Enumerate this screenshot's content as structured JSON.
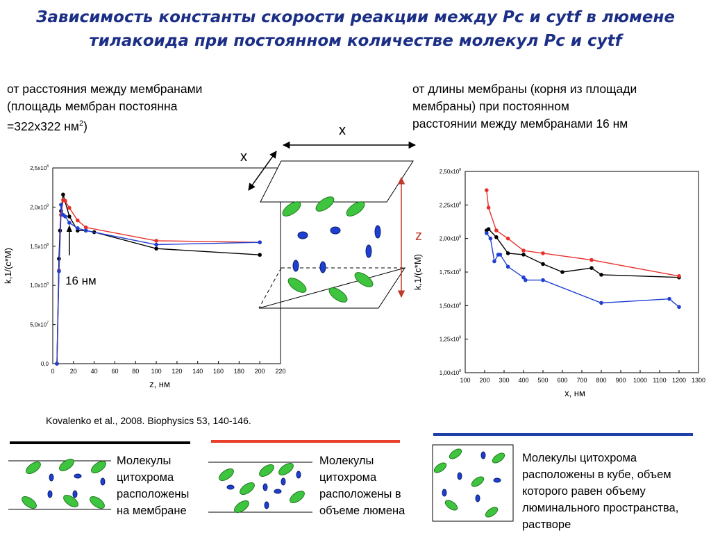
{
  "title": {
    "line1": "Зависимость константы скорости реакции между Pc и cytf  в люмене",
    "line2": "тилакоида при постоянном количестве молекул Pc и cytf"
  },
  "left_description": {
    "line1": "от расстояния между мембранами",
    "line2": "(площадь мембран постоянна",
    "line3": "=322x322 нм",
    "line3_sup": "2",
    "line3_end": ")"
  },
  "right_description": {
    "line1": "от длины мембраны (корня из площади",
    "line2": "мембраны) при постоянном",
    "line3": "расстоянии между мембранами 16 нм"
  },
  "scheme": {
    "label_x_top": "x",
    "label_x_side": "x",
    "label_z": "z"
  },
  "citation": "Kovalenko et al., 2008. Biophysics 53, 140-146.",
  "legend": [
    {
      "color": "#000000",
      "text_lines": [
        "Молекулы",
        "цитохрома",
        "расположены",
        "на мембране"
      ]
    },
    {
      "color": "#e8402a",
      "text_lines": [
        "Молекулы",
        "цитохрома",
        "расположены в",
        "объеме люмена"
      ]
    },
    {
      "color": "#1f3fa8",
      "text_lines": [
        "Молекулы цитохрома",
        "расположены в кубе, объем",
        "которого равен объему",
        "люминального пространства,",
        "растворе"
      ]
    }
  ],
  "colors": {
    "title": "#1c2f86",
    "black_series": "#000000",
    "red_series": "#e8302a",
    "blue_series": "#1f3fd0",
    "plastocyanin": "#3ec43e",
    "cytochrome": "#1e3fd0",
    "z_axis": "#c0392b"
  },
  "chart_data": [
    {
      "type": "line",
      "xlabel": "z, нм",
      "ylabel": "k,1/(c*M)",
      "xlim": [
        0,
        220
      ],
      "ylim": [
        0,
        250000000
      ],
      "x_ticks": [
        "0",
        "20",
        "40",
        "60",
        "80",
        "100",
        "120",
        "140",
        "160",
        "180",
        "200",
        "220"
      ],
      "y_ticks": [
        "0,0",
        "5,0x10",
        "1,0x10",
        "1,5x10",
        "2,0x10",
        "2,5x10"
      ],
      "y_tick_exponents": [
        "",
        "7",
        "8",
        "8",
        "8",
        "8"
      ],
      "annotation": "16 нм",
      "annotation_x": 16,
      "series": [
        {
          "color": "black",
          "x": [
            4,
            6,
            7,
            8,
            10,
            16,
            24,
            32,
            40,
            100,
            200
          ],
          "y": [
            0,
            134000000,
            170000000,
            195000000,
            216000000,
            188000000,
            170000000,
            170000000,
            168000000,
            147000000,
            139000000
          ]
        },
        {
          "color": "red",
          "x": [
            4,
            6,
            8,
            10,
            12,
            16,
            24,
            32,
            100,
            200
          ],
          "y": [
            0,
            119000000,
            190000000,
            209000000,
            208000000,
            199000000,
            183000000,
            174000000,
            157000000,
            155000000
          ]
        },
        {
          "color": "blue",
          "x": [
            4,
            6,
            8,
            10,
            12,
            16,
            24,
            32,
            100,
            200
          ],
          "y": [
            0,
            118000000,
            203000000,
            190000000,
            188000000,
            180000000,
            173000000,
            170000000,
            152000000,
            155000000
          ]
        }
      ]
    },
    {
      "type": "line",
      "xlabel": "x, нм",
      "ylabel": "k,1/(c*M)",
      "xlim": [
        100,
        1300
      ],
      "ylim": [
        100000000,
        250000000
      ],
      "x_ticks": [
        "100",
        "200",
        "300",
        "400",
        "500",
        "600",
        "700",
        "800",
        "900",
        "1000",
        "1100",
        "1200",
        "1300"
      ],
      "y_ticks": [
        "1,00x10",
        "1,25x10",
        "1,50x10",
        "1,75x10",
        "2,00x10",
        "2,25x10",
        "2,50x10"
      ],
      "y_tick_exponents": [
        "8",
        "8",
        "8",
        "8",
        "8",
        "8",
        "8"
      ],
      "series": [
        {
          "color": "black",
          "x": [
            210,
            220,
            260,
            320,
            400,
            500,
            600,
            750,
            800,
            1200
          ],
          "y": [
            206000000,
            207000000,
            201000000,
            189000000,
            188000000,
            181000000,
            175000000,
            178000000,
            173000000,
            171000000
          ]
        },
        {
          "color": "red",
          "x": [
            210,
            220,
            260,
            320,
            400,
            500,
            750,
            1200
          ],
          "y": [
            236000000,
            223000000,
            206000000,
            200000000,
            191000000,
            189000000,
            184000000,
            172000000
          ]
        },
        {
          "color": "blue",
          "x": [
            210,
            230,
            250,
            270,
            280,
            320,
            400,
            410,
            500,
            800,
            1150,
            1200
          ],
          "y": [
            204000000,
            200000000,
            183000000,
            188000000,
            188000000,
            179000000,
            171000000,
            169000000,
            169000000,
            152000000,
            155000000,
            149000000
          ]
        }
      ]
    }
  ]
}
